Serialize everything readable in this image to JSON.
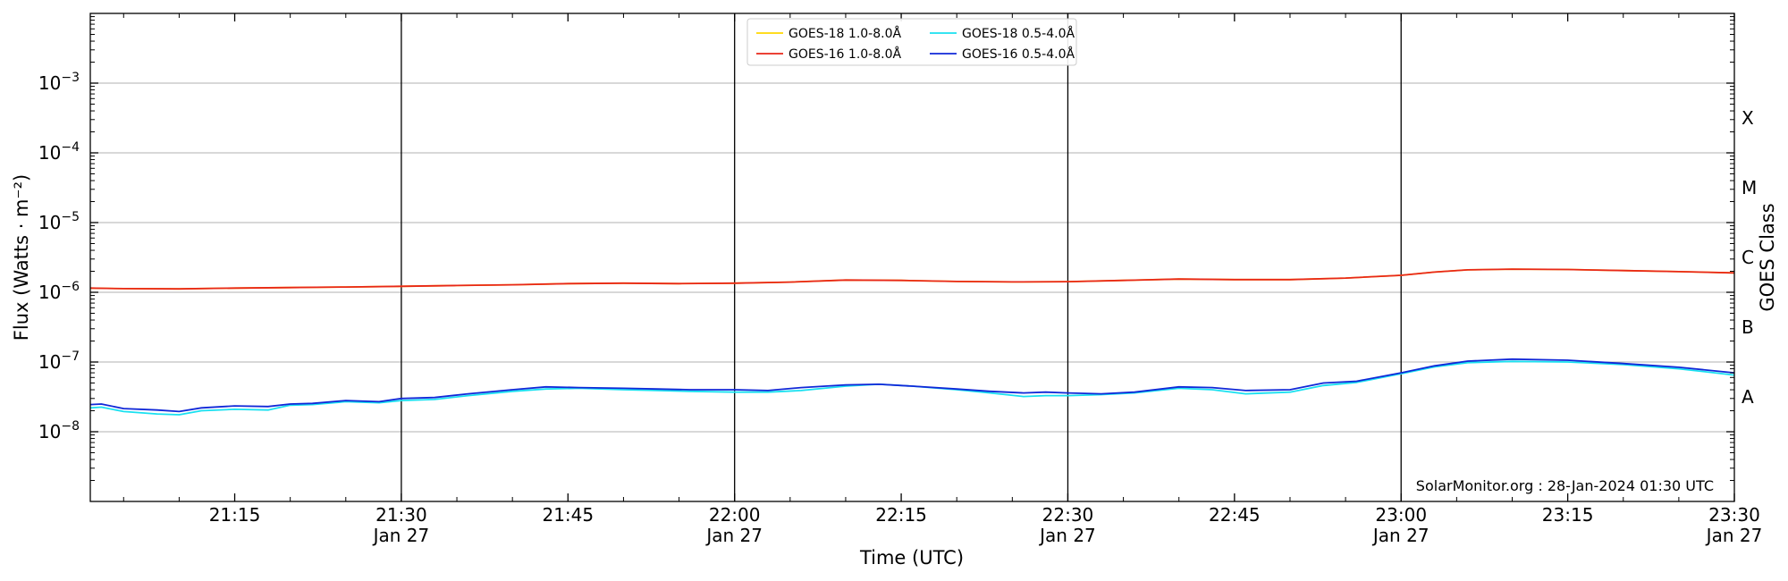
{
  "chart_data": {
    "type": "line",
    "title": "",
    "xlabel": "Time (UTC)",
    "ylabel": "Flux (Watts · m⁻²)",
    "ylabel_right": "GOES Class",
    "y_scale": "log",
    "ylim": [
      1e-09,
      0.01
    ],
    "y_ticks": [
      {
        "value": 1e-08,
        "base": "10",
        "exp": "−8"
      },
      {
        "value": 1e-07,
        "base": "10",
        "exp": "−7"
      },
      {
        "value": 1e-06,
        "base": "10",
        "exp": "−6"
      },
      {
        "value": 1e-05,
        "base": "10",
        "exp": "−5"
      },
      {
        "value": 0.0001,
        "base": "10",
        "exp": "−4"
      },
      {
        "value": 0.001,
        "base": "10",
        "exp": "−3"
      }
    ],
    "xlim": [
      "2024-01-27T21:02",
      "2024-01-27T23:30"
    ],
    "x_ticks": [
      {
        "time": "21:15",
        "date": ""
      },
      {
        "time": "21:30",
        "date": "Jan 27"
      },
      {
        "time": "21:45",
        "date": ""
      },
      {
        "time": "22:00",
        "date": "Jan 27"
      },
      {
        "time": "22:15",
        "date": ""
      },
      {
        "time": "22:30",
        "date": "Jan 27"
      },
      {
        "time": "22:45",
        "date": ""
      },
      {
        "time": "23:00",
        "date": "Jan 27"
      },
      {
        "time": "23:15",
        "date": ""
      },
      {
        "time": "23:30",
        "date": "Jan 27"
      }
    ],
    "vertical_lines": [
      "21:30",
      "22:00",
      "22:30",
      "23:00"
    ],
    "goes_classes": [
      {
        "label": "A",
        "value": 1e-08
      },
      {
        "label": "B",
        "value": 1e-07
      },
      {
        "label": "C",
        "value": 1e-06
      },
      {
        "label": "M",
        "value": 1e-05
      },
      {
        "label": "X",
        "value": 0.0001
      }
    ],
    "grid": "horizontal",
    "legend_position": "top-center",
    "annotation": "SolarMonitor.org : 28-Jan-2024 01:30 UTC",
    "series": [
      {
        "name": "GOES-18 1.0-8.0Å",
        "color": "#ffd700",
        "x": [
          "21:02",
          "21:05",
          "21:10",
          "21:15",
          "21:20",
          "21:25",
          "21:30",
          "21:35",
          "21:40",
          "21:45",
          "21:50",
          "21:55",
          "22:00",
          "22:05",
          "22:10",
          "22:15",
          "22:20",
          "22:25",
          "22:30",
          "22:35",
          "22:40",
          "22:45",
          "22:50",
          "22:55",
          "23:00",
          "23:03",
          "23:06",
          "23:10",
          "23:15",
          "23:20",
          "23:25",
          "23:30"
        ],
        "y": [
          1.15e-06,
          1.13e-06,
          1.12e-06,
          1.15e-06,
          1.17e-06,
          1.19e-06,
          1.22e-06,
          1.25e-06,
          1.28e-06,
          1.33e-06,
          1.35e-06,
          1.33e-06,
          1.35e-06,
          1.4e-06,
          1.5e-06,
          1.48e-06,
          1.43e-06,
          1.41e-06,
          1.42e-06,
          1.48e-06,
          1.55e-06,
          1.52e-06,
          1.52e-06,
          1.6e-06,
          1.75e-06,
          1.95e-06,
          2.1e-06,
          2.15e-06,
          2.12e-06,
          2.05e-06,
          1.98e-06,
          1.9e-06
        ]
      },
      {
        "name": "GOES-16 1.0-8.0Å",
        "color": "#e8271a",
        "x": [
          "21:02",
          "21:05",
          "21:10",
          "21:15",
          "21:20",
          "21:25",
          "21:30",
          "21:35",
          "21:40",
          "21:45",
          "21:50",
          "21:55",
          "22:00",
          "22:05",
          "22:10",
          "22:15",
          "22:20",
          "22:25",
          "22:30",
          "22:35",
          "22:40",
          "22:45",
          "22:50",
          "22:55",
          "23:00",
          "23:03",
          "23:06",
          "23:10",
          "23:15",
          "23:20",
          "23:25",
          "23:30"
        ],
        "y": [
          1.15e-06,
          1.13e-06,
          1.12e-06,
          1.15e-06,
          1.17e-06,
          1.19e-06,
          1.22e-06,
          1.25e-06,
          1.28e-06,
          1.33e-06,
          1.35e-06,
          1.33e-06,
          1.35e-06,
          1.4e-06,
          1.5e-06,
          1.48e-06,
          1.43e-06,
          1.41e-06,
          1.42e-06,
          1.48e-06,
          1.55e-06,
          1.52e-06,
          1.52e-06,
          1.6e-06,
          1.75e-06,
          1.95e-06,
          2.1e-06,
          2.15e-06,
          2.12e-06,
          2.05e-06,
          1.98e-06,
          1.9e-06
        ]
      },
      {
        "name": "GOES-18 0.5-4.0Å",
        "color": "#19e0f0",
        "x": [
          "21:02",
          "21:03",
          "21:05",
          "21:08",
          "21:10",
          "21:12",
          "21:15",
          "21:18",
          "21:20",
          "21:22",
          "21:25",
          "21:28",
          "21:30",
          "21:33",
          "21:36",
          "21:40",
          "21:43",
          "21:46",
          "21:50",
          "21:53",
          "21:56",
          "22:00",
          "22:03",
          "22:06",
          "22:10",
          "22:13",
          "22:16",
          "22:20",
          "22:23",
          "22:26",
          "22:28",
          "22:30",
          "22:33",
          "22:36",
          "22:40",
          "22:43",
          "22:46",
          "22:50",
          "22:53",
          "22:56",
          "23:00",
          "23:03",
          "23:06",
          "23:10",
          "23:15",
          "23:20",
          "23:25",
          "23:30"
        ],
        "y": [
          2.2e-08,
          2.25e-08,
          1.95e-08,
          1.8e-08,
          1.75e-08,
          2e-08,
          2.1e-08,
          2.05e-08,
          2.4e-08,
          2.45e-08,
          2.7e-08,
          2.6e-08,
          2.8e-08,
          2.9e-08,
          3.3e-08,
          3.8e-08,
          4.1e-08,
          4.2e-08,
          4e-08,
          3.9e-08,
          3.8e-08,
          3.7e-08,
          3.7e-08,
          3.9e-08,
          4.5e-08,
          4.8e-08,
          4.5e-08,
          4e-08,
          3.6e-08,
          3.2e-08,
          3.3e-08,
          3.3e-08,
          3.4e-08,
          3.6e-08,
          4.2e-08,
          4e-08,
          3.5e-08,
          3.7e-08,
          4.6e-08,
          5.1e-08,
          6.8e-08,
          8.5e-08,
          9.8e-08,
          1.02e-07,
          1e-07,
          9.2e-08,
          8e-08,
          6.5e-08
        ]
      },
      {
        "name": "GOES-16 0.5-4.0Å",
        "color": "#1028d8",
        "x": [
          "21:02",
          "21:03",
          "21:05",
          "21:08",
          "21:10",
          "21:12",
          "21:15",
          "21:18",
          "21:20",
          "21:22",
          "21:25",
          "21:28",
          "21:30",
          "21:33",
          "21:36",
          "21:40",
          "21:43",
          "21:46",
          "21:50",
          "21:53",
          "21:56",
          "22:00",
          "22:03",
          "22:06",
          "22:10",
          "22:13",
          "22:16",
          "22:20",
          "22:23",
          "22:26",
          "22:28",
          "22:30",
          "22:33",
          "22:36",
          "22:40",
          "22:43",
          "22:46",
          "22:50",
          "22:53",
          "22:56",
          "23:00",
          "23:03",
          "23:06",
          "23:10",
          "23:15",
          "23:20",
          "23:25",
          "23:30"
        ],
        "y": [
          2.45e-08,
          2.5e-08,
          2.15e-08,
          2.05e-08,
          1.95e-08,
          2.2e-08,
          2.35e-08,
          2.3e-08,
          2.5e-08,
          2.55e-08,
          2.8e-08,
          2.7e-08,
          3e-08,
          3.1e-08,
          3.5e-08,
          4e-08,
          4.4e-08,
          4.3e-08,
          4.2e-08,
          4.1e-08,
          4e-08,
          4e-08,
          3.9e-08,
          4.3e-08,
          4.7e-08,
          4.8e-08,
          4.5e-08,
          4.1e-08,
          3.8e-08,
          3.6e-08,
          3.7e-08,
          3.6e-08,
          3.5e-08,
          3.7e-08,
          4.4e-08,
          4.3e-08,
          3.9e-08,
          4e-08,
          5e-08,
          5.3e-08,
          7e-08,
          8.8e-08,
          1.03e-07,
          1.1e-07,
          1.06e-07,
          9.5e-08,
          8.4e-08,
          7e-08
        ]
      }
    ]
  }
}
